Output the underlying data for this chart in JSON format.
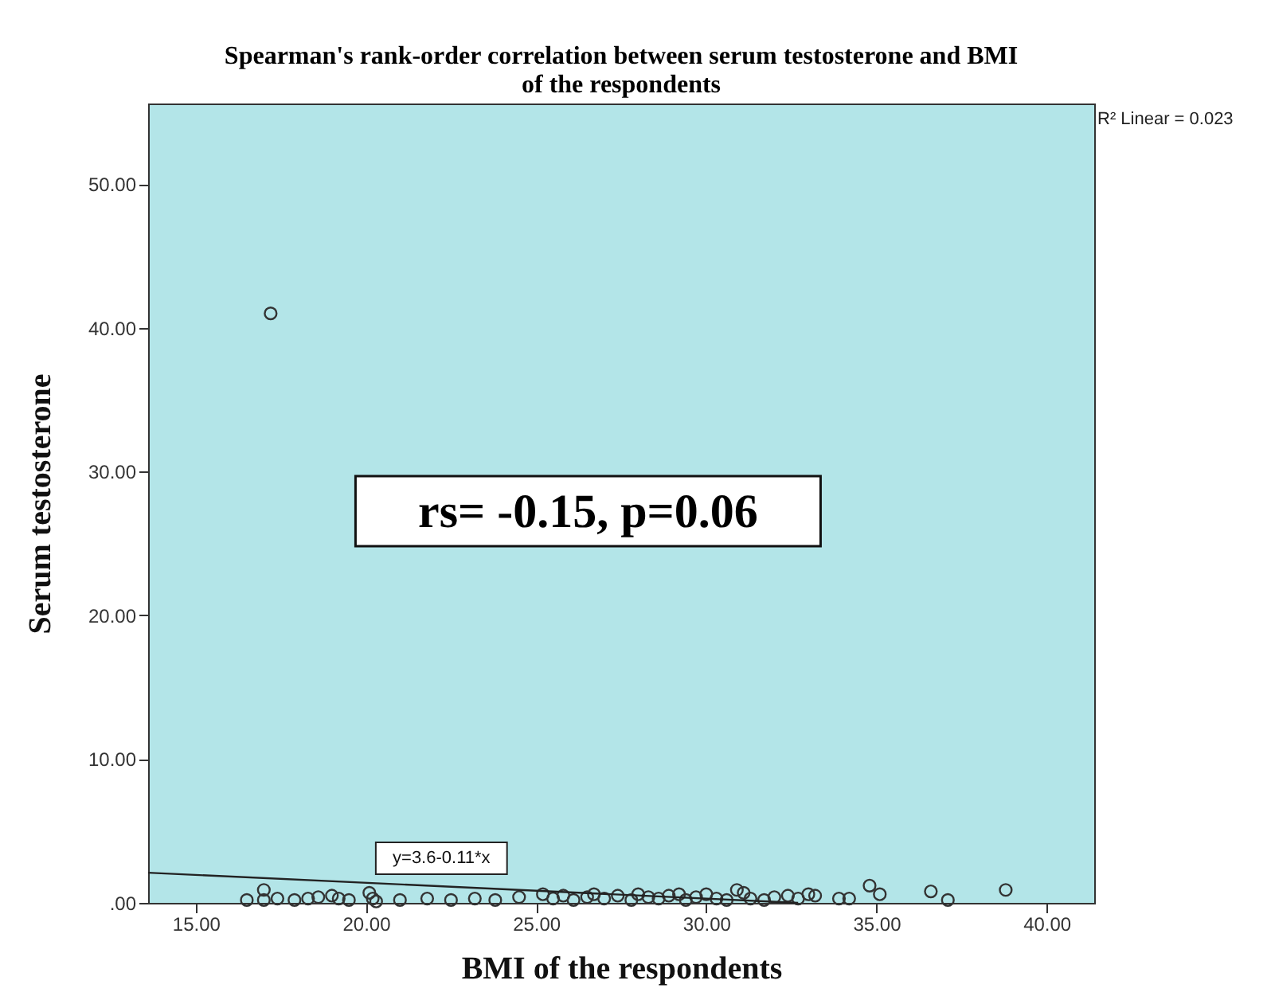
{
  "chart_data": {
    "type": "scatter",
    "title": "Spearman's rank-order correlation between serum testosterone and BMI of the respondents",
    "xlabel": "BMI of the respondents",
    "ylabel": "Serum testosterone",
    "xlim": [
      13.6,
      41.4
    ],
    "ylim": [
      0,
      55.6
    ],
    "xticks": [
      {
        "value": 15,
        "label": "15.00"
      },
      {
        "value": 20,
        "label": "20.00"
      },
      {
        "value": 25,
        "label": "25.00"
      },
      {
        "value": 30,
        "label": "30.00"
      },
      {
        "value": 35,
        "label": "35.00"
      },
      {
        "value": 40,
        "label": "40.00"
      }
    ],
    "yticks": [
      {
        "value": 0,
        "label": ".00"
      },
      {
        "value": 10,
        "label": "10.00"
      },
      {
        "value": 20,
        "label": "20.00"
      },
      {
        "value": 30,
        "label": "30.00"
      },
      {
        "value": 40,
        "label": "40.00"
      },
      {
        "value": 50,
        "label": "50.00"
      }
    ],
    "grid": false,
    "marker": "circle",
    "series": [
      {
        "color": "#333333",
        "x": [
          16.5,
          17.0,
          17.0,
          17.2,
          17.4,
          17.9,
          18.3,
          18.6,
          19.0,
          19.2,
          19.5,
          20.1,
          20.2,
          20.3,
          21.0,
          21.8,
          22.5,
          23.2,
          23.8,
          24.5,
          25.2,
          25.5,
          25.8,
          26.1,
          26.5,
          26.7,
          27.0,
          27.4,
          27.8,
          28.0,
          28.3,
          28.6,
          28.9,
          29.2,
          29.4,
          29.7,
          30.0,
          30.3,
          30.6,
          30.9,
          31.1,
          31.3,
          31.7,
          32.0,
          32.4,
          32.7,
          33.0,
          33.2,
          33.9,
          34.2,
          34.8,
          35.1,
          36.6,
          37.1,
          38.8
        ],
        "values": [
          0.2,
          0.9,
          0.2,
          41.0,
          0.3,
          0.2,
          0.3,
          0.4,
          0.5,
          0.3,
          0.2,
          0.7,
          0.3,
          0.1,
          0.2,
          0.3,
          0.2,
          0.3,
          0.2,
          0.4,
          0.6,
          0.3,
          0.5,
          0.2,
          0.4,
          0.6,
          0.3,
          0.5,
          0.2,
          0.6,
          0.4,
          0.3,
          0.5,
          0.6,
          0.2,
          0.4,
          0.6,
          0.3,
          0.2,
          0.9,
          0.7,
          0.3,
          0.2,
          0.4,
          0.5,
          0.3,
          0.6,
          0.5,
          0.3,
          0.3,
          1.2,
          0.6,
          0.8,
          0.2,
          0.9
        ]
      },
      {
        "type": "line",
        "color": "#222222",
        "marker": "none",
        "line_style": "solid",
        "x": [
          13.6,
          32.7
        ],
        "values": [
          2.1,
          0.0
        ]
      }
    ],
    "annotations": [
      "rs= -0.15, p=0.06",
      "R² Linear = 0.023",
      "y=3.6-0.11*x"
    ]
  }
}
